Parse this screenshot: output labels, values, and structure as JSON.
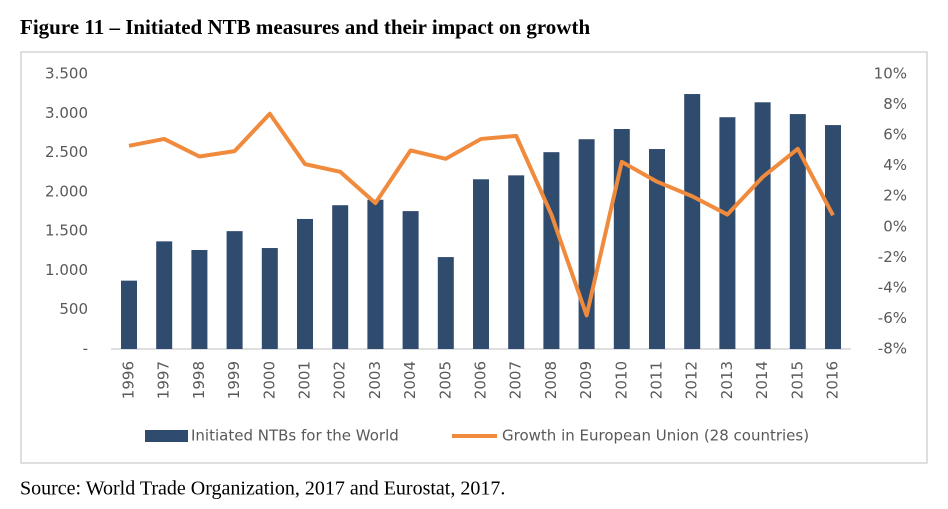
{
  "chart_data": {
    "type": "bar",
    "title": "Figure 11 – Initiated NTB measures and their impact on growth",
    "source": "Source: World Trade Organization, 2017 and Eurostat, 2017.",
    "categories": [
      "1996",
      "1997",
      "1998",
      "1999",
      "2000",
      "2001",
      "2002",
      "2003",
      "2004",
      "2005",
      "2006",
      "2007",
      "2008",
      "2009",
      "2010",
      "2011",
      "2012",
      "2013",
      "2014",
      "2015",
      "2016"
    ],
    "series": [
      {
        "name": "Initiated NTBs for the World",
        "type": "bar",
        "color": "#2f4b6e",
        "values": [
          870,
          1370,
          1260,
          1500,
          1285,
          1655,
          1830,
          1900,
          1755,
          1170,
          2160,
          2210,
          2505,
          2670,
          2800,
          2545,
          3245,
          2950,
          3140,
          2990,
          2850
        ]
      },
      {
        "name": "Growth in European Union (28 countries)",
        "type": "line",
        "axis": "y2",
        "color": "#f08a3c",
        "values": [
          5.3,
          5.75,
          4.6,
          4.95,
          7.4,
          4.1,
          3.6,
          1.55,
          5.0,
          4.45,
          5.75,
          5.95,
          0.8,
          -5.8,
          4.25,
          2.95,
          2.0,
          0.8,
          3.25,
          5.1,
          0.75
        ]
      }
    ],
    "ylim": [
      0,
      3500
    ],
    "yticks": [
      {
        "value": 0,
        "label": "-"
      },
      500,
      {
        "value": 1000,
        "label": "1.000"
      },
      {
        "value": 1500,
        "label": "1.500"
      },
      {
        "value": 2000,
        "label": "2.000"
      },
      {
        "value": 2500,
        "label": "2.500"
      },
      {
        "value": 3000,
        "label": "3.000"
      },
      {
        "value": 3500,
        "label": "3.500"
      }
    ],
    "y2lim": [
      -8,
      10
    ],
    "y2ticks": [
      {
        "value": -8,
        "label": "-8%"
      },
      {
        "value": -6,
        "label": "-6%"
      },
      {
        "value": -4,
        "label": "-4%"
      },
      {
        "value": -2,
        "label": "-2%"
      },
      {
        "value": 0,
        "label": "0%"
      },
      {
        "value": 2,
        "label": "2%"
      },
      {
        "value": 4,
        "label": "4%"
      },
      {
        "value": 6,
        "label": "6%"
      },
      {
        "value": 8,
        "label": "8%"
      },
      {
        "value": 10,
        "label": "10%"
      }
    ],
    "legend": "bottom"
  }
}
